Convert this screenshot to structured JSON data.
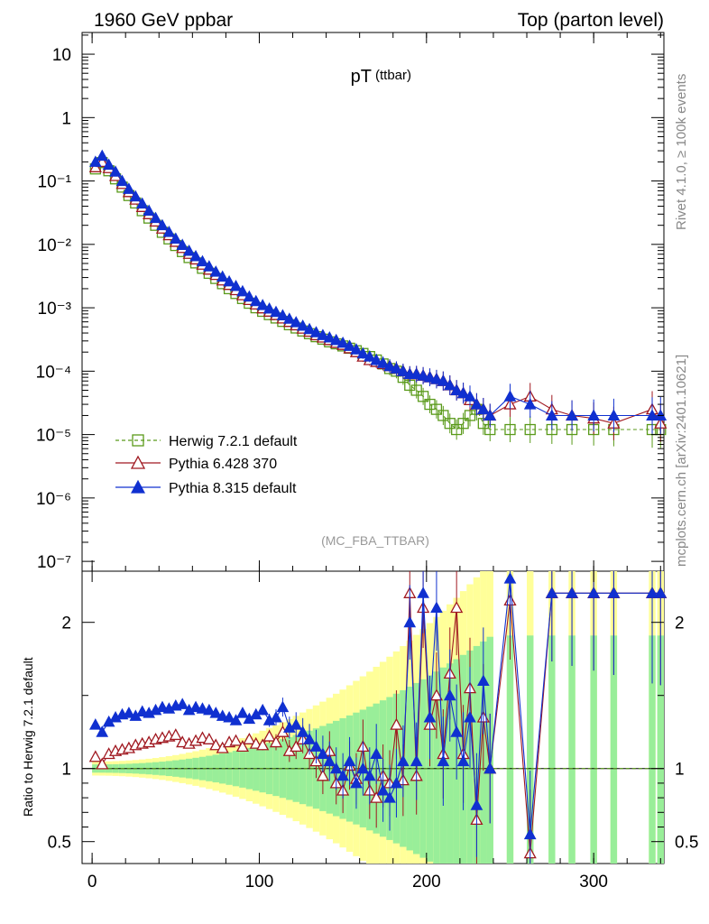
{
  "header": {
    "left": "1960 GeV ppbar",
    "right": "Top (parton level)"
  },
  "side_labels": {
    "rivet": "Rivet 4.1.0, ≥ 100k events",
    "mcplots": "mcplots.cern.ch [arXiv:2401.10621]"
  },
  "chart_data": {
    "type": "line",
    "title_main": "pT",
    "title_sub": "(ttbar)",
    "analysis": "(MC_FBA_TTBAR)",
    "xlim": [
      -6,
      342
    ],
    "xticks": [
      "0",
      "100",
      "200",
      "300"
    ],
    "top": {
      "yscale": "log",
      "ylim": [
        7e-08,
        22
      ],
      "yticks": [
        {
          "v": 10,
          "label": "10"
        },
        {
          "v": 1,
          "label": "1"
        },
        {
          "v": 0.1,
          "label": "10⁻¹"
        },
        {
          "v": 0.01,
          "label": "10⁻²"
        },
        {
          "v": 0.001,
          "label": "10⁻³"
        },
        {
          "v": 0.0001,
          "label": "10⁻⁴"
        },
        {
          "v": 1e-05,
          "label": "10⁻⁵"
        },
        {
          "v": 1e-06,
          "label": "10⁻⁶"
        },
        {
          "v": 1e-07,
          "label": "10⁻⁷"
        }
      ]
    },
    "ratio": {
      "ylabel": "Ratio to Herwig 7.2.1 default",
      "ylim": [
        0.35,
        2.35
      ],
      "yticks": [
        {
          "v": 2,
          "label": "2"
        },
        {
          "v": 1,
          "label": "1"
        },
        {
          "v": 0.5,
          "label": "0.5"
        }
      ]
    },
    "series": [
      {
        "name": "Herwig 7.2.1 default",
        "color": "#5a9a1a",
        "marker": "open-square",
        "x": [
          2,
          6,
          10,
          14,
          18,
          22,
          26,
          30,
          34,
          38,
          42,
          46,
          50,
          54,
          58,
          62,
          66,
          70,
          74,
          78,
          82,
          86,
          90,
          94,
          98,
          102,
          106,
          110,
          114,
          118,
          122,
          126,
          130,
          134,
          138,
          142,
          146,
          150,
          154,
          158,
          162,
          166,
          170,
          174,
          178,
          182,
          186,
          190,
          194,
          198,
          202,
          206,
          210,
          214,
          218,
          222,
          226,
          230,
          234,
          238,
          250,
          262,
          275,
          287,
          300,
          312,
          335,
          340
        ],
        "values": [
          0.155,
          0.195,
          0.145,
          0.108,
          0.08,
          0.059,
          0.045,
          0.034,
          0.026,
          0.02,
          0.0155,
          0.0122,
          0.0096,
          0.0077,
          0.0062,
          0.0051,
          0.0042,
          0.0035,
          0.0029,
          0.0024,
          0.002,
          0.00168,
          0.0014,
          0.00118,
          0.001,
          0.00088,
          0.00078,
          0.00069,
          0.00061,
          0.00054,
          0.00048,
          0.00043,
          0.00039,
          0.00035,
          0.00032,
          0.00029,
          0.00027,
          0.00025,
          0.00023,
          0.00021,
          0.00019,
          0.00017,
          0.00015,
          0.00013,
          0.00011,
          0.0001,
          8e-05,
          6e-05,
          5e-05,
          4e-05,
          3e-05,
          2.5e-05,
          2e-05,
          1.5e-05,
          1.2e-05,
          1.5e-05,
          2e-05,
          2.5e-05,
          1.5e-05,
          1.2e-05,
          1.2e-05,
          1.2e-05,
          1.2e-05,
          1.2e-05,
          1.2e-05,
          1.2e-05,
          1.2e-05,
          1.2e-05
        ],
        "ratio": [
          1,
          1,
          1,
          1,
          1,
          1,
          1,
          1,
          1,
          1,
          1,
          1,
          1,
          1,
          1,
          1,
          1,
          1,
          1,
          1,
          1,
          1,
          1,
          1,
          1,
          1,
          1,
          1,
          1,
          1,
          1,
          1,
          1,
          1,
          1,
          1,
          1,
          1,
          1,
          1,
          1,
          1,
          1,
          1,
          1,
          1,
          1,
          1,
          1,
          1,
          1,
          1,
          1,
          1,
          1,
          1,
          1,
          1,
          1,
          1,
          1,
          1,
          1,
          1,
          1,
          1,
          1,
          1
        ]
      },
      {
        "name": "Pythia 6.428 370",
        "color": "#a01820",
        "marker": "open-triangle",
        "x": [
          2,
          6,
          10,
          14,
          18,
          22,
          26,
          30,
          34,
          38,
          42,
          46,
          50,
          54,
          58,
          62,
          66,
          70,
          74,
          78,
          82,
          86,
          90,
          94,
          98,
          102,
          106,
          110,
          114,
          118,
          122,
          126,
          130,
          134,
          138,
          142,
          146,
          150,
          154,
          158,
          162,
          166,
          170,
          174,
          178,
          182,
          186,
          190,
          194,
          198,
          202,
          206,
          210,
          214,
          218,
          222,
          226,
          230,
          234,
          238,
          250,
          262,
          275,
          287,
          300,
          312,
          335,
          340
        ],
        "values": [
          0.165,
          0.2,
          0.16,
          0.12,
          0.09,
          0.067,
          0.051,
          0.039,
          0.03,
          0.023,
          0.0178,
          0.014,
          0.011,
          0.0088,
          0.0071,
          0.0058,
          0.0048,
          0.004,
          0.0033,
          0.0027,
          0.0023,
          0.0019,
          0.00158,
          0.00133,
          0.00113,
          0.00098,
          0.00087,
          0.00077,
          0.00068,
          0.0006,
          0.00053,
          0.00047,
          0.00042,
          0.00037,
          0.00034,
          0.00031,
          0.00028,
          0.00026,
          0.00023,
          0.0002,
          0.00017,
          0.00015,
          0.00014,
          0.00013,
          0.00012,
          0.00011,
          0.0001,
          9e-05,
          9e-05,
          8.5e-05,
          8e-05,
          7.5e-05,
          7e-05,
          6e-05,
          5e-05,
          4.5e-05,
          3.5e-05,
          3e-05,
          2.5e-05,
          2e-05,
          3e-05,
          4e-05,
          2.5e-05,
          2e-05,
          1.8e-05,
          1.5e-05,
          2.5e-05,
          1.5e-05
        ],
        "ratio": [
          1.08,
          1.03,
          1.1,
          1.12,
          1.13,
          1.14,
          1.16,
          1.17,
          1.18,
          1.2,
          1.21,
          1.22,
          1.23,
          1.18,
          1.17,
          1.19,
          1.21,
          1.2,
          1.16,
          1.14,
          1.18,
          1.19,
          1.15,
          1.2,
          1.17,
          1.16,
          1.22,
          1.18,
          1.25,
          1.12,
          1.15,
          1.2,
          1.1,
          1.05,
          0.95,
          1.12,
          0.9,
          0.85,
          1.02,
          0.93,
          1.15,
          0.85,
          0.8,
          0.95,
          0.9,
          1.3,
          0.92,
          2.2,
          0.95,
          2.1,
          1.3,
          1.5,
          1.1,
          1.65,
          2.1,
          1.1,
          1.55,
          0.65,
          1.35,
          1.0,
          2.15,
          0.42,
          2.2,
          2.2,
          2.2,
          2.2,
          2.2,
          2.2
        ]
      },
      {
        "name": "Pythia 8.315 default",
        "color": "#1030d0",
        "marker": "filled-triangle",
        "x": [
          2,
          6,
          10,
          14,
          18,
          22,
          26,
          30,
          34,
          38,
          42,
          46,
          50,
          54,
          58,
          62,
          66,
          70,
          74,
          78,
          82,
          86,
          90,
          94,
          98,
          102,
          106,
          110,
          114,
          118,
          122,
          126,
          130,
          134,
          138,
          142,
          146,
          150,
          154,
          158,
          162,
          166,
          170,
          174,
          178,
          182,
          186,
          190,
          194,
          198,
          202,
          206,
          210,
          214,
          218,
          222,
          226,
          230,
          234,
          238,
          250,
          262,
          275,
          287,
          300,
          312,
          335,
          340
        ],
        "values": [
          0.2,
          0.25,
          0.18,
          0.14,
          0.1,
          0.075,
          0.057,
          0.044,
          0.034,
          0.026,
          0.02,
          0.0157,
          0.0123,
          0.0098,
          0.0079,
          0.0065,
          0.0054,
          0.0045,
          0.0037,
          0.0031,
          0.0026,
          0.0022,
          0.00182,
          0.0015,
          0.00127,
          0.0011,
          0.00097,
          0.00086,
          0.00076,
          0.00067,
          0.00059,
          0.00052,
          0.00046,
          0.00041,
          0.00037,
          0.00034,
          0.00031,
          0.00028,
          0.00025,
          0.00022,
          0.00019,
          0.00017,
          0.00015,
          0.000135,
          0.00012,
          0.00011,
          0.0001,
          9e-05,
          9e-05,
          8.5e-05,
          8e-05,
          7.5e-05,
          7e-05,
          6e-05,
          5e-05,
          4.5e-05,
          4e-05,
          3e-05,
          2.5e-05,
          2e-05,
          4e-05,
          3e-05,
          2e-05,
          2e-05,
          2e-05,
          2e-05,
          2e-05,
          2e-05
        ],
        "ratio": [
          1.3,
          1.25,
          1.32,
          1.35,
          1.37,
          1.38,
          1.36,
          1.39,
          1.38,
          1.4,
          1.42,
          1.41,
          1.43,
          1.44,
          1.4,
          1.42,
          1.41,
          1.4,
          1.38,
          1.36,
          1.35,
          1.33,
          1.38,
          1.34,
          1.37,
          1.4,
          1.33,
          1.35,
          1.42,
          1.28,
          1.3,
          1.25,
          1.2,
          1.15,
          1.1,
          1.05,
          1.0,
          0.95,
          1.05,
          0.9,
          1.0,
          0.95,
          1.1,
          0.85,
          0.8,
          0.9,
          1.05,
          2.0,
          1.05,
          2.2,
          1.35,
          2.1,
          1.05,
          1.5,
          1.25,
          1.05,
          1.35,
          0.75,
          1.6,
          1.0,
          2.3,
          0.55,
          2.2,
          2.2,
          2.2,
          2.2,
          2.2,
          2.2
        ]
      }
    ]
  }
}
